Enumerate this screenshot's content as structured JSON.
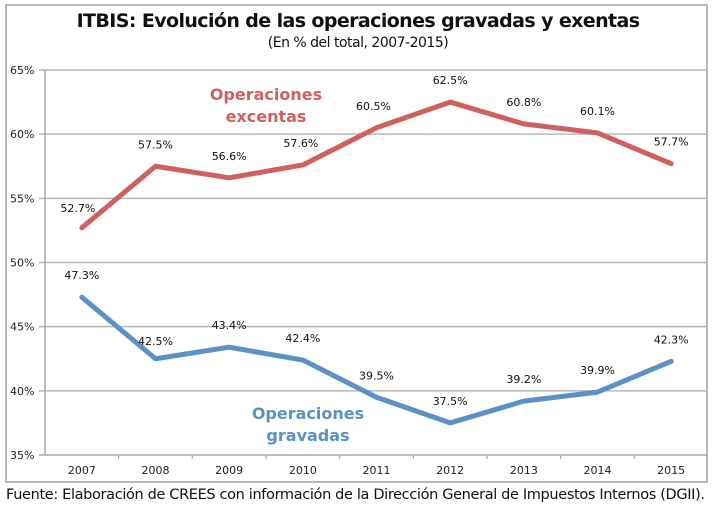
{
  "chart_data": {
    "type": "line",
    "title": "ITBIS: Evolución de las operaciones gravadas y exentas",
    "subtitle": "(En % del total, 2007-2015)",
    "xlabel": "",
    "ylabel": "",
    "categories": [
      "2007",
      "2008",
      "2009",
      "2010",
      "2011",
      "2012",
      "2013",
      "2014",
      "2015"
    ],
    "ylim": [
      35,
      65
    ],
    "yticks": [
      35,
      40,
      45,
      50,
      55,
      60,
      65
    ],
    "ytick_labels": [
      "35%",
      "40%",
      "45%",
      "50%",
      "55%",
      "60%",
      "65%"
    ],
    "grid": true,
    "legend": "none (inline series annotations)",
    "series": [
      {
        "name": "Operaciones excentas",
        "annotation_lines": [
          "Operaciones",
          "excentas"
        ],
        "color": "#d0605e",
        "values": [
          52.7,
          57.5,
          56.6,
          57.6,
          60.5,
          62.5,
          60.8,
          60.1,
          57.7
        ],
        "labels": [
          "52.7%",
          "57.5%",
          "56.6%",
          "57.6%",
          "60.5%",
          "62.5%",
          "60.8%",
          "60.1%",
          "57.7%"
        ]
      },
      {
        "name": "Operaciones gravadas",
        "annotation_lines": [
          "Operaciones",
          "gravadas"
        ],
        "color": "#5b91c4",
        "values": [
          47.3,
          42.5,
          43.4,
          42.4,
          39.5,
          37.5,
          39.2,
          39.9,
          42.3
        ],
        "labels": [
          "47.3%",
          "42.5%",
          "43.4%",
          "42.4%",
          "39.5%",
          "37.5%",
          "39.2%",
          "39.9%",
          "42.3%"
        ]
      }
    ],
    "source": "Fuente: Elaboración de CREES con información de la Dirección General de Impuestos Internos (DGII)."
  }
}
